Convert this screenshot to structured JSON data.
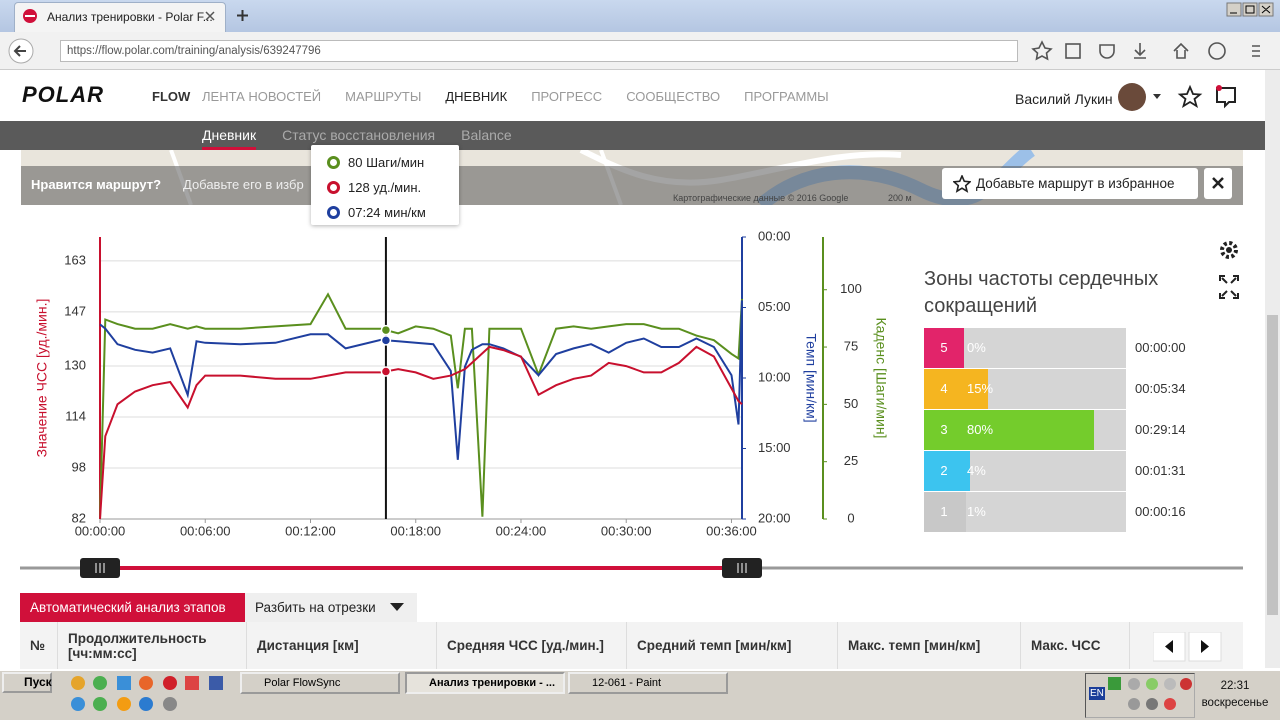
{
  "browser": {
    "tab_title": "Анализ тренировки - Polar F...",
    "url": "https://flow.polar.com/training/analysis/639247796"
  },
  "nav": {
    "logo": "POLAR",
    "brand": "FLOW",
    "items": [
      "ЛЕНТА НОВОСТЕЙ",
      "МАРШРУТЫ",
      "ДНЕВНИК",
      "ПРОГРЕСС",
      "СООБЩЕСТВО",
      "ПРОГРАММЫ"
    ],
    "active": 2,
    "user": "Василий Лукин"
  },
  "subnav": {
    "items": [
      "Дневник",
      "Статус восстановления",
      "Balance"
    ],
    "active": 0
  },
  "map": {
    "prompt": "Нравится маршрут?",
    "hint": "Добавьте его в избр",
    "button": "Добавьте маршрут в избранное",
    "attribution": "Картографические данные © 2016 Google",
    "scale": "200 м"
  },
  "tooltip": [
    {
      "label": "80 Шаги/мин",
      "color": "#5a8f1e"
    },
    {
      "label": "128 уд./мин.",
      "color": "#c8102e"
    },
    {
      "label": "07:24 мин/км",
      "color": "#1f3f9f"
    }
  ],
  "chart": {
    "type": "line",
    "x": [
      0,
      0.3,
      1,
      2,
      3,
      4,
      5,
      5.5,
      6,
      8,
      10,
      12,
      13,
      14,
      16,
      17,
      18,
      19,
      20,
      20.4,
      20.8,
      21.2,
      21.8,
      22.2,
      23,
      24,
      25,
      26,
      27,
      28,
      29,
      30,
      31,
      32,
      33,
      34,
      35,
      36,
      36.4,
      36.6
    ],
    "xlim": [
      0,
      36.6
    ],
    "xticks": [
      {
        "value": 0,
        "label": "00:00:00"
      },
      {
        "value": 6,
        "label": "00:06:00"
      },
      {
        "value": 12,
        "label": "00:12:00"
      },
      {
        "value": 18,
        "label": "00:18:00"
      },
      {
        "value": 24,
        "label": "00:24:00"
      },
      {
        "value": 30,
        "label": "00:30:00"
      },
      {
        "value": 36,
        "label": "00:36:00"
      }
    ],
    "ylabel": "Значение ЧСС [уд./мин.]",
    "ylim": [
      82,
      170.5
    ],
    "yticks": [
      82,
      98,
      114,
      130,
      147,
      163
    ],
    "y2label": "Темп [мин/км]",
    "y2lim": [
      0,
      20
    ],
    "y2_inverted": true,
    "y2ticks": [
      {
        "value": 0,
        "label": "00:00"
      },
      {
        "value": 5,
        "label": "05:00"
      },
      {
        "value": 10,
        "label": "10:00"
      },
      {
        "value": 15,
        "label": "15:00"
      },
      {
        "value": 20,
        "label": "20:00"
      }
    ],
    "y3label": "Каденс [Шаги/мин]",
    "y3lim": [
      0,
      123
    ],
    "y3ticks": [
      0,
      25,
      50,
      75,
      100
    ],
    "grid": true,
    "cursor_x": 16.3,
    "series": [
      {
        "name": "ЧСС",
        "color": "#c8102e",
        "axis": "y",
        "values": [
          82,
          108,
          118,
          122,
          124,
          125,
          117,
          124,
          127,
          127,
          126,
          126,
          127,
          128,
          128,
          129,
          128,
          126,
          127,
          128,
          129,
          131,
          134,
          136,
          135,
          133,
          121,
          124,
          126,
          127,
          131,
          130,
          128,
          128,
          131,
          136,
          133,
          123,
          119,
          118
        ]
      },
      {
        "name": "Темп",
        "color": "#1f3f9f",
        "axis": "y2",
        "values": [
          6.2,
          6.5,
          7.6,
          8.0,
          8.2,
          7.9,
          11.2,
          7.4,
          7.5,
          7.6,
          7.5,
          6.9,
          6.9,
          7.9,
          7.3,
          7.4,
          7.5,
          7.6,
          9.5,
          15.8,
          9.2,
          8.0,
          7.6,
          7.6,
          7.9,
          8.5,
          9.8,
          8.3,
          7.9,
          7.6,
          8.2,
          7.5,
          7.2,
          7.8,
          7.8,
          7.2,
          7.8,
          9.8,
          13.3,
          4.5
        ]
      },
      {
        "name": "Каденс",
        "color": "#5a8f1e",
        "axis": "y3",
        "values": [
          0,
          87,
          85,
          83,
          83,
          85,
          83,
          84,
          83,
          83,
          84,
          85,
          98,
          83,
          83,
          81,
          84,
          83,
          80,
          57,
          83,
          83,
          1,
          83,
          83,
          83,
          63,
          83,
          84,
          83,
          84,
          85,
          85,
          83,
          83,
          80,
          78,
          72,
          70,
          96
        ]
      }
    ]
  },
  "zones": {
    "title": "Зоны частоты сердечных сокращений",
    "rows": [
      {
        "zone": "5",
        "value": 0,
        "value_label": "0%",
        "time": "00:00:00",
        "color": "#e2246a"
      },
      {
        "zone": "4",
        "value": 15,
        "value_label": "15%",
        "time": "00:05:34",
        "color": "#f5b520"
      },
      {
        "zone": "3",
        "value": 80,
        "value_label": "80%",
        "time": "00:29:14",
        "color": "#74cc2c"
      },
      {
        "zone": "2",
        "value": 4,
        "value_label": "4%",
        "time": "00:01:31",
        "color": "#3cc4ef"
      },
      {
        "zone": "1",
        "value": 1,
        "value_label": "1%",
        "time": "00:00:16",
        "color": "#c8c8c8"
      }
    ]
  },
  "laps": {
    "tabs": [
      "Автоматический анализ этапов",
      "Разбить на отрезки"
    ],
    "headers": [
      "№",
      "Продолжительность [чч:мм:сс]",
      "Дистанция [км]",
      "Средняя ЧСС [уд./мин.]",
      "Средний темп [мин/км]",
      "Макс. темп [мин/км]",
      "Макс. ЧСС"
    ]
  },
  "taskbar": {
    "start": "Пуск",
    "tasks": [
      "Polar FlowSync",
      "Анализ тренировки - ...",
      "12-061 - Paint"
    ],
    "active": 1,
    "lang": "EN",
    "time": "22:31",
    "day": "воскресенье"
  }
}
